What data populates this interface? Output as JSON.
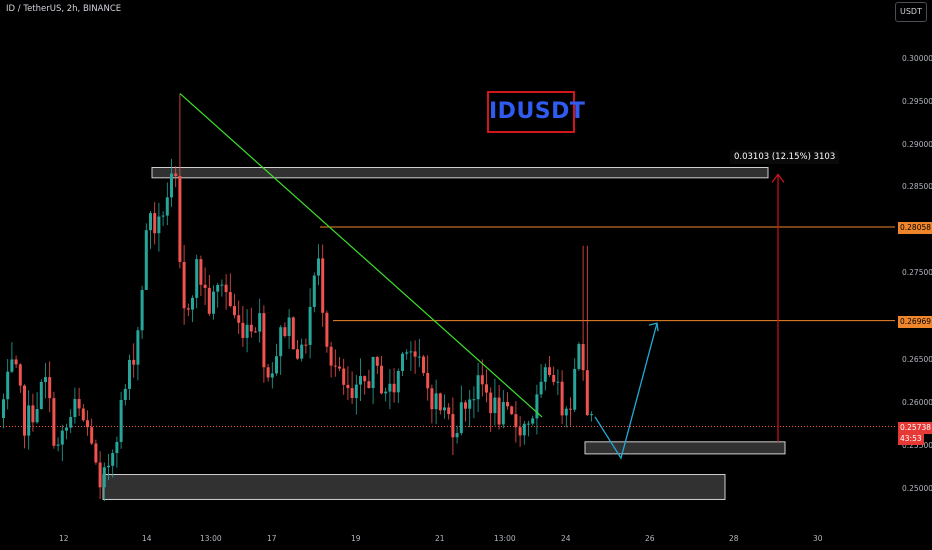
{
  "header": {
    "symbol_label": "ID / TetherUS, 2h, BINANCE",
    "currency_button": "USDT"
  },
  "annotation": {
    "title": "IDUSDT",
    "title_color": "#2f5bf0",
    "measure_label": "0.03103 (12.15%) 3103"
  },
  "price_tags": {
    "resistance_upper": "0.28058",
    "resistance_lower": "0.26969",
    "current_price": "0.25738",
    "countdown": "43:53"
  },
  "colors": {
    "up": "#26a69a",
    "down": "#ef5350",
    "trendline": "#3ee02b",
    "level_line": "#f0862b",
    "projection": "#23a9d6",
    "measure_arrow": "#d0151b",
    "zone_fill": "#3a3a3a",
    "zone_border": "#cfcfcf"
  },
  "chart_data": {
    "type": "candlestick",
    "title": "ID / TetherUS, 2h, BINANCE",
    "ylim": [
      0.2475,
      0.3035
    ],
    "y_ticks": [
      "0.30000",
      "0.29500",
      "0.29000",
      "0.28500",
      "0.28000",
      "0.27500",
      "0.27000",
      "0.26500",
      "0.26000",
      "0.25500",
      "0.25000"
    ],
    "x_ticks": [
      "12",
      "14",
      "13:00",
      "17",
      "19",
      "21",
      "13:00",
      "24",
      "26",
      "28",
      "30"
    ],
    "grid": false,
    "key_points": [
      {
        "label": "low",
        "value": 0.2487
      },
      {
        "label": "high",
        "value": 0.2961
      },
      {
        "label": "last",
        "value": 0.25738
      }
    ],
    "levels": [
      {
        "name": "resistance_upper",
        "value": 0.28058
      },
      {
        "name": "resistance_lower",
        "value": 0.26969
      },
      {
        "name": "last_price",
        "value": 0.25738
      }
    ],
    "zones": [
      {
        "from": 0.2863,
        "to": 0.2875
      },
      {
        "from": 0.2542,
        "to": 0.2556
      },
      {
        "from": 0.2489,
        "to": 0.2518
      }
    ],
    "trendline": {
      "from": 0.2961,
      "to": 0.2585
    },
    "projection": [
      0.2585,
      0.2537,
      0.2694
    ],
    "measure": {
      "from": 0.2556,
      "to": 0.2867,
      "change": "0.03103 (12.15%) 3103"
    }
  }
}
